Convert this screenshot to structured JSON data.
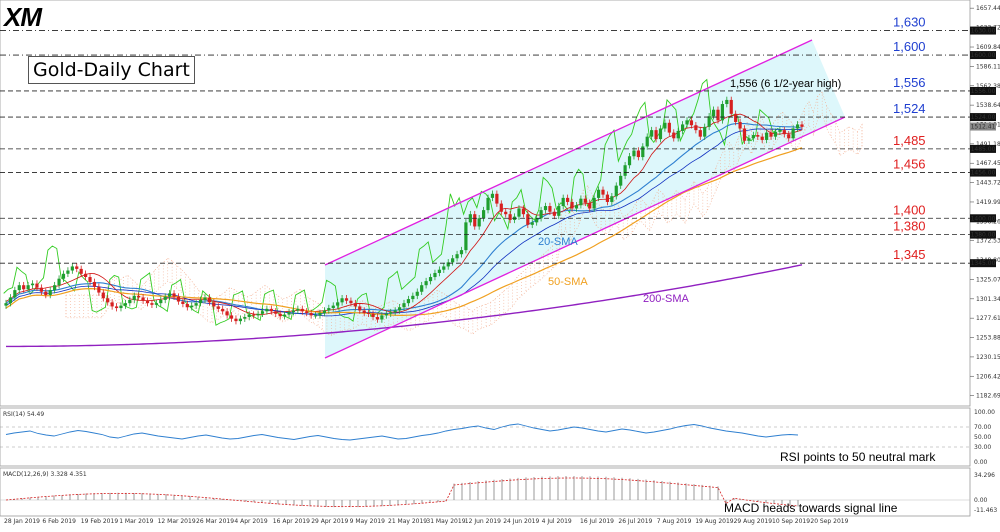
{
  "brand": {
    "logo_text": "XM"
  },
  "chart_data": {
    "type": "candlestick",
    "title": "Gold-Daily Chart",
    "y_ticks": [
      "1657.44",
      "1633.72",
      "1609.84",
      "1586.11",
      "1562.38",
      "1538.64",
      "1514.91",
      "1491.18",
      "1467.45",
      "1443.72",
      "1419.99",
      "1396.26",
      "1372.53",
      "1348.80",
      "1325.07",
      "1301.34",
      "1277.61",
      "1253.88",
      "1230.15",
      "1206.42",
      "1182.69"
    ],
    "y_range": [
      1170,
      1665
    ],
    "price_boxes": [
      "1630.00",
      "1600.00",
      "1556.00",
      "1524.00",
      "1512.41",
      "1485.00",
      "1456.00",
      "1400.00",
      "1380.00",
      "1345.00"
    ],
    "levels": [
      {
        "label": "1,630",
        "value": 1630,
        "color": "#1f3fd0",
        "style": "dashdot"
      },
      {
        "label": "1,600",
        "value": 1600,
        "color": "#1f3fd0",
        "style": "dashdot"
      },
      {
        "label": "1,556",
        "value": 1556,
        "color": "#1f3fd0",
        "style": "dash"
      },
      {
        "label": "1,524",
        "value": 1524,
        "color": "#1f3fd0",
        "style": "dash"
      },
      {
        "label": "1,485",
        "value": 1485,
        "color": "#e02020",
        "style": "dash"
      },
      {
        "label": "1,456",
        "value": 1456,
        "color": "#e02020",
        "style": "dash"
      },
      {
        "label": "1,400",
        "value": 1400,
        "color": "#e02020",
        "style": "dash"
      },
      {
        "label": "1,380",
        "value": 1380,
        "color": "#e02020",
        "style": "dash"
      },
      {
        "label": "1,345",
        "value": 1345,
        "color": "#e02020",
        "style": "dash"
      }
    ],
    "x_labels": [
      "28 Jan 2019",
      "6 Feb 2019",
      "19 Feb 2019",
      "1 Mar 2019",
      "12 Mar 2019",
      "26 Mar 2019",
      "4 Apr 2019",
      "16 Apr 2019",
      "29 Apr 2019",
      "9 May 2019",
      "21 May 2019",
      "31 May 2019",
      "12 Jun 2019",
      "24 Jun 2019",
      "4 Jul 2019",
      "16 Jul 2019",
      "26 Jul 2019",
      "7 Aug 2019",
      "19 Aug 2019",
      "29 Aug 2019",
      "10 Sep 2019",
      "20 Sep 2019"
    ],
    "closes": [
      1296,
      1303,
      1312,
      1318,
      1313,
      1318,
      1320,
      1315,
      1310,
      1306,
      1312,
      1318,
      1326,
      1332,
      1336,
      1341,
      1338,
      1332,
      1328,
      1322,
      1316,
      1309,
      1302,
      1297,
      1292,
      1290,
      1293,
      1296,
      1300,
      1305,
      1303,
      1299,
      1296,
      1294,
      1296,
      1300,
      1304,
      1308,
      1304,
      1298,
      1295,
      1291,
      1293,
      1296,
      1300,
      1303,
      1297,
      1292,
      1289,
      1286,
      1281,
      1277,
      1274,
      1277,
      1279,
      1282,
      1281,
      1283,
      1286,
      1289,
      1286,
      1283,
      1280,
      1282,
      1285,
      1287,
      1289,
      1286,
      1284,
      1281,
      1281,
      1284,
      1287,
      1290,
      1293,
      1297,
      1302,
      1299,
      1296,
      1292,
      1287,
      1284,
      1283,
      1279,
      1276,
      1281,
      1283,
      1285,
      1287,
      1291,
      1296,
      1301,
      1305,
      1310,
      1318,
      1323,
      1328,
      1333,
      1337,
      1341,
      1346,
      1351,
      1356,
      1361,
      1395,
      1405,
      1390,
      1400,
      1410,
      1425,
      1430,
      1418,
      1408,
      1405,
      1398,
      1402,
      1412,
      1405,
      1392,
      1395,
      1400,
      1410,
      1415,
      1408,
      1403,
      1415,
      1425,
      1420,
      1412,
      1416,
      1424,
      1419,
      1412,
      1425,
      1435,
      1429,
      1420,
      1427,
      1440,
      1452,
      1465,
      1476,
      1483,
      1475,
      1488,
      1500,
      1508,
      1497,
      1510,
      1517,
      1505,
      1498,
      1507,
      1515,
      1520,
      1514,
      1508,
      1500,
      1512,
      1525,
      1533,
      1520,
      1540,
      1545,
      1528,
      1518,
      1510,
      1495,
      1498,
      1502,
      1500,
      1496,
      1505,
      1500,
      1506,
      1508,
      1503,
      1498,
      1510,
      1515,
      1512
    ],
    "annotations": {
      "high_note": "1,556 (6 1/2-year high)",
      "sma20": "20-SMA",
      "sma50": "50-SMA",
      "sma200": "200-SMA"
    },
    "rsi": {
      "label": "RSI(14) 54.49",
      "ticks": [
        "100.00",
        "70.00",
        "50.00",
        "30.00",
        "0.00"
      ],
      "note": "RSI points to 50 neutral mark",
      "values": [
        55,
        58,
        60,
        62,
        57,
        54,
        52,
        56,
        60,
        63,
        61,
        58,
        55,
        50,
        48,
        52,
        56,
        58,
        55,
        52,
        50,
        48,
        46,
        49,
        52,
        54,
        51,
        48,
        46,
        47,
        50,
        53,
        55,
        52,
        49,
        47,
        45,
        48,
        51,
        53,
        50,
        47,
        45,
        44,
        46,
        48,
        50,
        52,
        49,
        46,
        47,
        50,
        53,
        55,
        58,
        62,
        65,
        67,
        70,
        72,
        68,
        65,
        70,
        74,
        76,
        72,
        68,
        65,
        62,
        64,
        67,
        70,
        68,
        65,
        62,
        60,
        63,
        66,
        64,
        61,
        58,
        60,
        63,
        66,
        70,
        73,
        75,
        72,
        68,
        65,
        62,
        60,
        58,
        55,
        52,
        50,
        52,
        54,
        55,
        54
      ]
    },
    "macd": {
      "label": "MACD(12,26,9) 3.328 4.351",
      "ticks": [
        "34.296",
        "0.00",
        "-11.463"
      ],
      "note": "MACD heads towards signal line"
    },
    "colors": {
      "up": "#1f9e2f",
      "down": "#d62020",
      "sma20": "#2e7fd0",
      "sma50": "#f0a020",
      "sma200": "#9020c0",
      "channel": "#e020e0",
      "channel_fill": "#d9f6fb",
      "cloud": "#f1a98a",
      "span": "#33cc22",
      "kijun": "#1030c0",
      "tenkan": "#d01010"
    }
  }
}
